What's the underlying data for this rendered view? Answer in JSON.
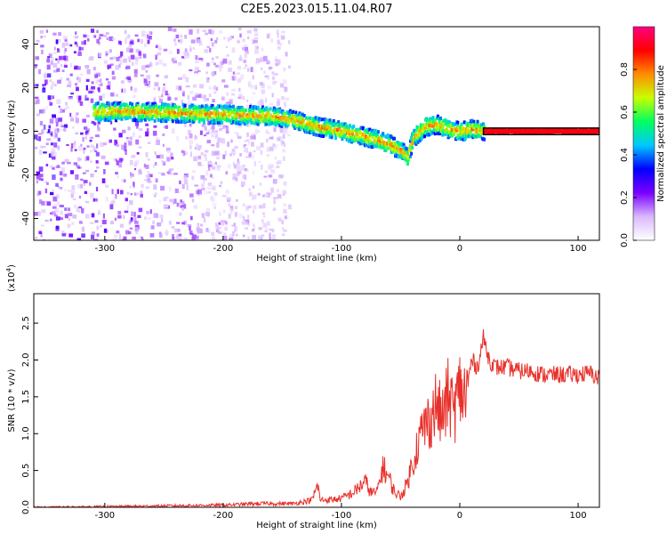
{
  "chart_data": [
    {
      "type": "heatmap",
      "title": "C2E5.2023.015.11.04.R07",
      "xlabel": "Height of straight line (km)",
      "ylabel": "Frequency (Hz)",
      "xlim": [
        -360,
        118
      ],
      "ylim": [
        -50,
        48
      ],
      "xticks": [
        -300,
        -200,
        -100,
        0,
        100
      ],
      "yticks": [
        -40,
        -20,
        0,
        20,
        40
      ],
      "colorbar": {
        "label": "Normalized spectral amplitude",
        "range": [
          0.0,
          1.0
        ],
        "ticks": [
          "0.0",
          "0.2",
          "0.4",
          "0.6",
          "0.8"
        ],
        "colors": [
          "#ffffff",
          "#d9b8ff",
          "#7a00ff",
          "#0000ff",
          "#00c8ff",
          "#00ff60",
          "#c8ff00",
          "#ff8c00",
          "#ff0000",
          "#ff0080"
        ]
      },
      "dominant_ridge": {
        "x": [
          -310,
          -280,
          -250,
          -220,
          -190,
          -160,
          -140,
          -120,
          -100,
          -85,
          -70,
          -60,
          -50,
          -45,
          -40,
          -30,
          -20,
          -10,
          0,
          10,
          20,
          40,
          60,
          80,
          100,
          118
        ],
        "y": [
          9,
          9,
          8.5,
          8,
          7.5,
          7,
          5,
          2,
          0,
          -2,
          -4,
          -6,
          -9,
          -12,
          -3,
          2,
          3,
          1,
          0,
          1,
          0,
          0,
          0,
          0,
          0,
          0
        ]
      },
      "noise_region_x": [
        -360,
        -145
      ]
    },
    {
      "type": "line",
      "title": "",
      "xlabel": "Height of straight line (km)",
      "ylabel": "SNR (10 * v/v)",
      "multiplier_label": "(x10",
      "multiplier_exp": "4",
      "multiplier_close": ")",
      "xlim": [
        -360,
        118
      ],
      "ylim": [
        0,
        2.9
      ],
      "xticks": [
        -300,
        -200,
        -100,
        0,
        100
      ],
      "yticks": [
        "0.0",
        "0.5",
        "1.0",
        "1.5",
        "2.0",
        "2.5"
      ],
      "series": [
        {
          "color": "#e8302a",
          "x": [
            -360,
            -300,
            -250,
            -200,
            -170,
            -140,
            -125,
            -120,
            -118,
            -110,
            -100,
            -90,
            -80,
            -75,
            -70,
            -65,
            -60,
            -55,
            -50,
            -45,
            -40,
            -35,
            -30,
            -25,
            -20,
            -15,
            -10,
            -5,
            0,
            5,
            10,
            15,
            20,
            25,
            30,
            40,
            50,
            60,
            70,
            80,
            90,
            100,
            110,
            118
          ],
          "y": [
            0.0,
            0.01,
            0.02,
            0.03,
            0.05,
            0.05,
            0.1,
            0.3,
            0.1,
            0.1,
            0.12,
            0.2,
            0.35,
            0.2,
            0.2,
            0.55,
            0.4,
            0.2,
            0.15,
            0.3,
            0.6,
            0.9,
            1.1,
            1.2,
            1.4,
            1.2,
            1.5,
            1.3,
            1.6,
            1.5,
            2.0,
            1.9,
            2.3,
            2.0,
            1.9,
            1.9,
            1.85,
            1.85,
            1.8,
            1.8,
            1.8,
            1.8,
            1.82,
            1.75
          ]
        }
      ]
    }
  ]
}
